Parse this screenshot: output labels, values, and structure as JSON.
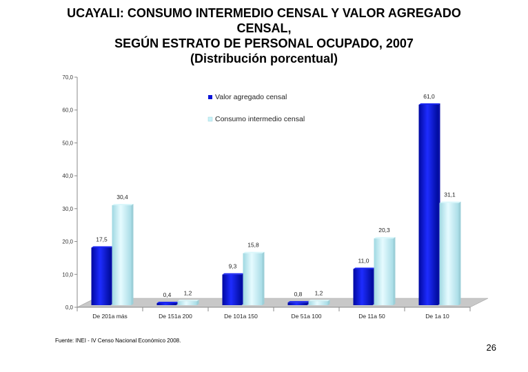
{
  "title_lines": [
    "UCAYALI: CONSUMO INTERMEDIO CENSAL Y VALOR AGREGADO",
    "CENSAL,",
    "SEGÚN ESTRATO DE PERSONAL OCUPADO, 2007",
    "(Distribución porcentual)"
  ],
  "colors": {
    "valor_agregado": "#0a14d8",
    "consumo_intermedio": "#c8f2f8",
    "floor": "#c8c8c8"
  },
  "chart_data": {
    "type": "bar",
    "title": "UCAYALI: CONSUMO INTERMEDIO CENSAL Y VALOR AGREGADO CENSAL, SEGÚN ESTRATO DE PERSONAL OCUPADO, 2007 (Distribución porcentual)",
    "categories": [
      "De 201a más",
      "De 151a 200",
      "De 101a 150",
      "De 51a 100",
      "De 11a 50",
      "De 1a 10"
    ],
    "series": [
      {
        "name": "Valor agregado censal",
        "values": [
          17.5,
          0.4,
          9.3,
          0.8,
          11.0,
          61.0
        ],
        "labels": [
          "17,5",
          "0,4",
          "9,3",
          "0,8",
          "11,0",
          "61,0"
        ]
      },
      {
        "name": "Consumo intermedio censal",
        "values": [
          30.4,
          1.2,
          15.8,
          1.2,
          20.3,
          31.1
        ],
        "labels": [
          "30,4",
          "1,2",
          "15,8",
          "1,2",
          "20,3",
          "31,1"
        ]
      }
    ],
    "yticks": [
      "0,0",
      "10,0",
      "20,0",
      "30,0",
      "40,0",
      "50,0",
      "60,0",
      "70,0"
    ],
    "ylim": [
      0,
      70
    ],
    "xlabel": "",
    "ylabel": "",
    "legend_position": "top-center"
  },
  "footer": {
    "source": "Fuente: INEI - IV Censo Nacional Económico 2008.",
    "page_number": "26"
  }
}
